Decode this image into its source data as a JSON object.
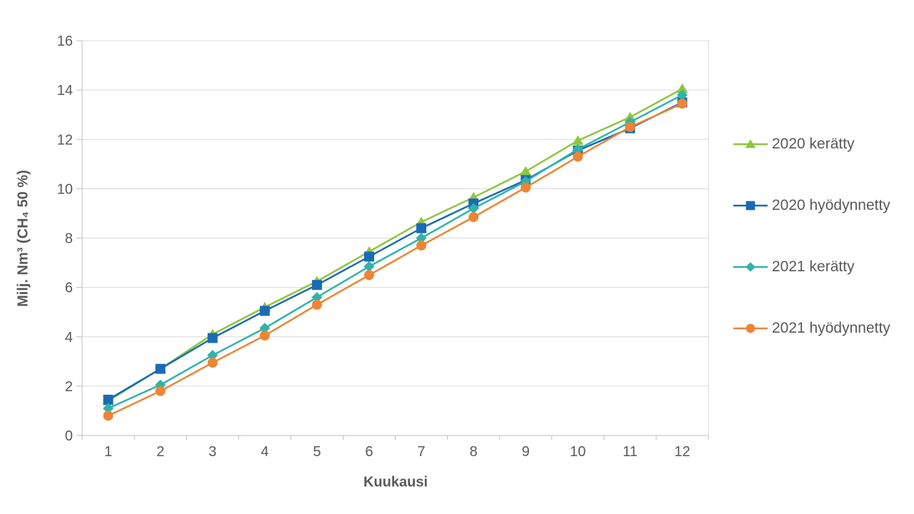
{
  "chart_data": {
    "type": "line",
    "title": "",
    "xlabel": "Kuukausi",
    "ylabel": "Milj. Nm³ (CH₄ 50 %)",
    "x": [
      1,
      2,
      3,
      4,
      5,
      6,
      7,
      8,
      9,
      10,
      11,
      12
    ],
    "ylim": [
      0,
      16
    ],
    "ytick_step": 2,
    "grid": "horizontal",
    "legend_position": "right",
    "series": [
      {
        "name": "2020 kerätty",
        "marker": "triangle",
        "color": "#8DC63F",
        "values": [
          1.4,
          2.7,
          4.1,
          5.2,
          6.25,
          7.45,
          8.65,
          9.65,
          10.7,
          11.95,
          12.9,
          14.05
        ]
      },
      {
        "name": "2020 hyödynnetty",
        "marker": "square",
        "color": "#1A6BB5",
        "values": [
          1.45,
          2.7,
          3.95,
          5.05,
          6.1,
          7.25,
          8.4,
          9.4,
          10.35,
          11.55,
          12.45,
          13.5
        ]
      },
      {
        "name": "2021 kerätty",
        "marker": "diamond",
        "color": "#2FB3AB",
        "values": [
          1.1,
          2.05,
          3.25,
          4.35,
          5.6,
          6.85,
          8.0,
          9.2,
          10.3,
          11.6,
          12.7,
          13.8
        ]
      },
      {
        "name": "2021 hyödynnetty",
        "marker": "circle",
        "color": "#EE8434",
        "values": [
          0.8,
          1.8,
          2.95,
          4.05,
          5.3,
          6.5,
          7.7,
          8.85,
          10.05,
          11.3,
          12.5,
          13.45
        ]
      }
    ],
    "colors": {
      "axis_text": "#595959",
      "gridline": "#D9D9D9",
      "axis_line": "#BFBFBF"
    }
  }
}
